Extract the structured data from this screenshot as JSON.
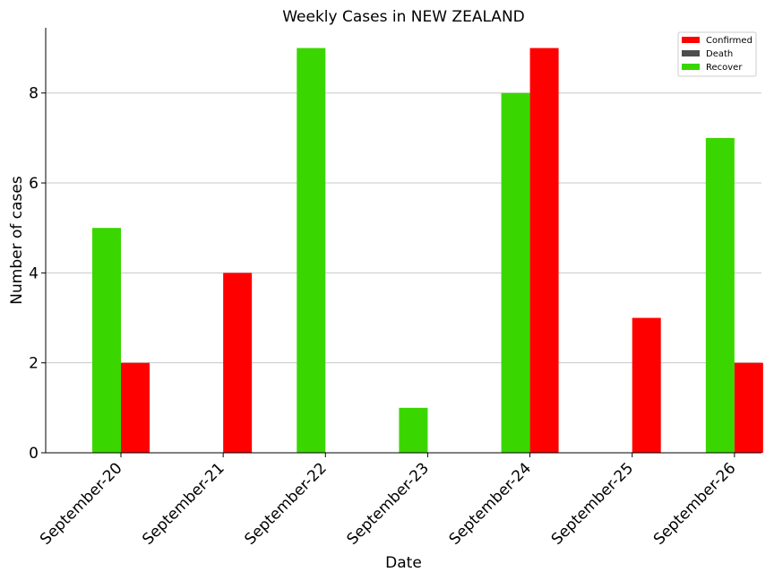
{
  "chart_data": {
    "type": "bar",
    "title": "Weekly Cases in NEW ZEALAND",
    "xlabel": "Date",
    "ylabel": "Number of cases",
    "categories": [
      "September-20",
      "September-21",
      "September-22",
      "September-23",
      "September-24",
      "September-25",
      "September-26"
    ],
    "series": [
      {
        "name": "Recover",
        "color": "#3ad600",
        "values": [
          5,
          0,
          9,
          1,
          8,
          0,
          7
        ]
      },
      {
        "name": "Confirmed",
        "color": "#ff0000",
        "values": [
          2,
          4,
          0,
          0,
          9,
          3,
          2
        ]
      },
      {
        "name": "Death",
        "color": "#4d4d4d",
        "values": [
          0,
          0,
          0,
          0,
          0,
          0,
          0
        ]
      }
    ],
    "legend": [
      "Confirmed",
      "Death",
      "Recover"
    ],
    "legend_position": "top-right",
    "yticks": [
      0,
      2,
      4,
      6,
      8
    ],
    "ylim": [
      0,
      9.45
    ],
    "grid": "y"
  }
}
